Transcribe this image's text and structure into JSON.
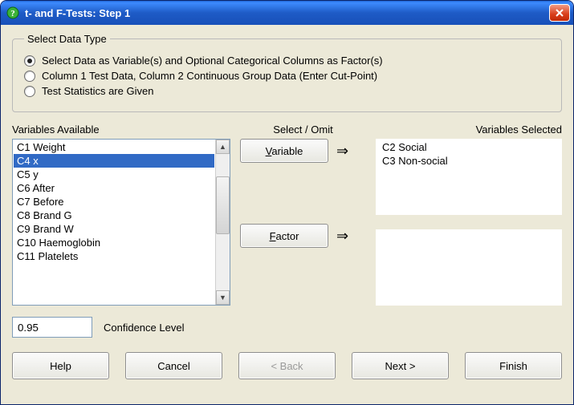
{
  "window": {
    "title": "t- and F-Tests: Step 1"
  },
  "group": {
    "legend": "Select Data Type",
    "options": [
      "Select Data as Variable(s) and Optional Categorical Columns as Factor(s)",
      "Column 1 Test Data, Column 2 Continuous Group Data (Enter Cut-Point)",
      "Test Statistics are Given"
    ],
    "selected_index": 0
  },
  "labels": {
    "available": "Variables Available",
    "select_omit": "Select / Omit",
    "selected": "Variables Selected",
    "confidence": "Confidence Level"
  },
  "available_vars": [
    "C1 Weight",
    "C4 x",
    "C5 y",
    "C6 After",
    "C7 Before",
    "C8 Brand G",
    "C9 Brand W",
    "C10 Haemoglobin",
    "C11 Platelets"
  ],
  "available_selected_index": 1,
  "mid_buttons": {
    "variable_label": "Variable",
    "variable_ul": "V",
    "factor_label": "Factor",
    "factor_ul": "F"
  },
  "selected_vars": [
    "C2 Social",
    "C3 Non-social"
  ],
  "selected_factors": [],
  "confidence_value": "0.95",
  "footer": {
    "help": "Help",
    "help_ul": "H",
    "cancel": "Cancel",
    "cancel_ul": "C",
    "back": "< Back",
    "back_ul": "<",
    "next": "Next >",
    "next_ul": ">",
    "finish": "Finish",
    "finish_ul": "F"
  },
  "colors": {
    "highlight": "#316ac5",
    "highlight_text": "#ffffff",
    "window_bg": "#ece9d8",
    "field_border": "#7f9db9"
  }
}
